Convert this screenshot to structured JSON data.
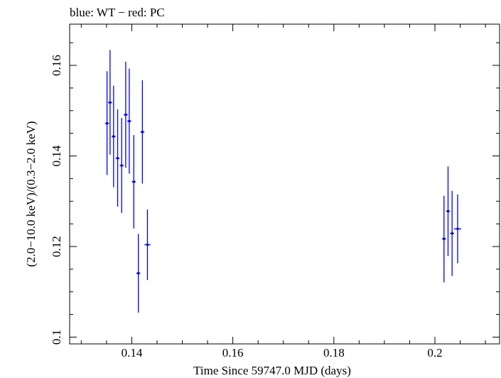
{
  "chart_data": {
    "type": "scatter",
    "title": "blue: WT − red: PC",
    "xlabel": "Time Since 59747.0 MJD (days)",
    "ylabel": "(2.0−10.0 keV)/(0.3−2.0 keV)",
    "xlim": [
      0.1277,
      0.2128
    ],
    "ylim": [
      0.0985,
      0.1691
    ],
    "xticks": [
      0.14,
      0.16,
      0.18,
      0.2
    ],
    "xtick_labels": [
      "0.14",
      "0.16",
      "0.18",
      "0.2"
    ],
    "yticks": [
      0.1,
      0.12,
      0.14,
      0.16
    ],
    "ytick_labels": [
      "0.1",
      "0.12",
      "0.14",
      "0.16"
    ],
    "series": [
      {
        "name": "WT",
        "color": "#0000ff",
        "points": [
          {
            "x": 0.1351,
            "y": 0.1472,
            "ylo": 0.1358,
            "yhi": 0.1587,
            "xerr": 0.0004
          },
          {
            "x": 0.1357,
            "y": 0.1518,
            "ylo": 0.1403,
            "yhi": 0.1634,
            "xerr": 0.0004
          },
          {
            "x": 0.1364,
            "y": 0.1443,
            "ylo": 0.1331,
            "yhi": 0.1555,
            "xerr": 0.0004
          },
          {
            "x": 0.1372,
            "y": 0.1395,
            "ylo": 0.1288,
            "yhi": 0.1503,
            "xerr": 0.0004
          },
          {
            "x": 0.138,
            "y": 0.1379,
            "ylo": 0.1274,
            "yhi": 0.1484,
            "xerr": 0.0004
          },
          {
            "x": 0.1388,
            "y": 0.1491,
            "ylo": 0.1374,
            "yhi": 0.1608,
            "xerr": 0.0004
          },
          {
            "x": 0.1395,
            "y": 0.1477,
            "ylo": 0.1361,
            "yhi": 0.1593,
            "xerr": 0.0004
          },
          {
            "x": 0.1404,
            "y": 0.1343,
            "ylo": 0.124,
            "yhi": 0.1446,
            "xerr": 0.0004
          },
          {
            "x": 0.1413,
            "y": 0.1141,
            "ylo": 0.1054,
            "yhi": 0.1228,
            "xerr": 0.0004
          },
          {
            "x": 0.1421,
            "y": 0.1453,
            "ylo": 0.1339,
            "yhi": 0.1567,
            "xerr": 0.0004
          },
          {
            "x": 0.1431,
            "y": 0.1204,
            "ylo": 0.1126,
            "yhi": 0.1282,
            "xerr": 0.0006
          },
          {
            "x": 0.2018,
            "y": 0.1217,
            "ylo": 0.1121,
            "yhi": 0.1312,
            "xerr": 0.0004
          },
          {
            "x": 0.2026,
            "y": 0.1278,
            "ylo": 0.1179,
            "yhi": 0.1377,
            "xerr": 0.0004
          },
          {
            "x": 0.2034,
            "y": 0.1229,
            "ylo": 0.1135,
            "yhi": 0.1323,
            "xerr": 0.0004
          },
          {
            "x": 0.2045,
            "y": 0.1239,
            "ylo": 0.1163,
            "yhi": 0.1315,
            "xerr": 0.0007
          }
        ]
      }
    ]
  }
}
